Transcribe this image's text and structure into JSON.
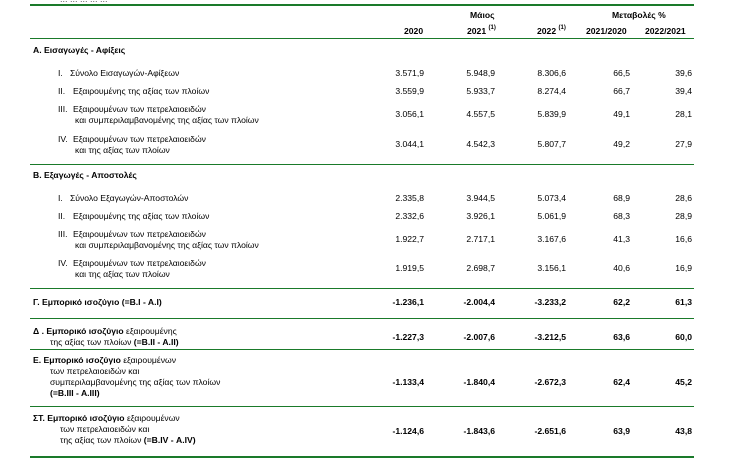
{
  "top_cut_text": "... ... ... ... ...",
  "header": {
    "month": "Μάιος",
    "changes": "Μεταβολές %",
    "col_2020": "2020",
    "col_2021": "2021",
    "col_2022": "2022",
    "note_mark": "(1)",
    "col_2021_2020": "2021/2020",
    "col_2022_2021": "2022/2021"
  },
  "section_a": {
    "title": "Α. Εισαγωγές - Αφίξεις",
    "rows": [
      {
        "idx": "I.",
        "lines": [
          "Σύνολο Εισαγωγών-Αφίξεων"
        ],
        "v2020": "3.571,9",
        "v2021": "5.948,9",
        "v2022": "8.306,6",
        "c1": "66,5",
        "c2": "39,6"
      },
      {
        "idx": "II.",
        "lines": [
          "Εξαιρουμένης της αξίας των πλοίων"
        ],
        "v2020": "3.559,9",
        "v2021": "5.933,7",
        "v2022": "8.274,4",
        "c1": "66,7",
        "c2": "39,4"
      },
      {
        "idx": "III.",
        "lines": [
          "Εξαιρουμένων των πετρελαιοειδών",
          "και συμπεριλαμβανομένης της αξίας των πλοίων"
        ],
        "v2020": "3.056,1",
        "v2021": "4.557,5",
        "v2022": "5.839,9",
        "c1": "49,1",
        "c2": "28,1"
      },
      {
        "idx": "IV.",
        "lines": [
          "Εξαιρουμένων των πετρελαιοειδών",
          "και  της αξίας των πλοίων"
        ],
        "v2020": "3.044,1",
        "v2021": "4.542,3",
        "v2022": "5.807,7",
        "c1": "49,2",
        "c2": "27,9"
      }
    ]
  },
  "section_b": {
    "title": "Β. Εξαγωγές - Αποστολές",
    "rows": [
      {
        "idx": "I.",
        "lines": [
          "Σύνολο Εξαγωγών-Αποστολών"
        ],
        "v2020": "2.335,8",
        "v2021": "3.944,5",
        "v2022": "5.073,4",
        "c1": "68,9",
        "c2": "28,6"
      },
      {
        "idx": "II.",
        "lines": [
          "Εξαιρουμένης της αξίας των πλοίων"
        ],
        "v2020": "2.332,6",
        "v2021": "3.926,1",
        "v2022": "5.061,9",
        "c1": "68,3",
        "c2": "28,9"
      },
      {
        "idx": "III.",
        "lines": [
          "Εξαιρουμένων των πετρελαιοειδών",
          "και συμπεριλαμβανομένης της αξίας των πλοίων"
        ],
        "v2020": "1.922,7",
        "v2021": "2.717,1",
        "v2022": "3.167,6",
        "c1": "41,3",
        "c2": "16,6"
      },
      {
        "idx": "IV.",
        "lines": [
          "Εξαιρουμένων των πετρελαιοειδών",
          "και της αξίας των πλοίων"
        ],
        "v2020": "1.919,5",
        "v2021": "2.698,7",
        "v2022": "3.156,1",
        "c1": "40,6",
        "c2": "16,9"
      }
    ]
  },
  "balances": [
    {
      "lines": [
        {
          "bold": "Γ. Εμπορικό ισοζύγιο ",
          "rest": "",
          "tail": "(=Β.Ι - Α.Ι)"
        }
      ],
      "v2020": "-1.236,1",
      "v2021": "-2.004,4",
      "v2022": "-3.233,2",
      "c1": "62,2",
      "c2": "61,3"
    },
    {
      "lines": [
        {
          "bold": "Δ . Εμπορικό ισοζύγιο ",
          "rest": "εξαιρουμένης",
          "tail": ""
        },
        {
          "bold": "",
          "rest": "της αξίας των πλοίων ",
          "tail": "(=Β.ΙΙ - Α.ΙΙ)"
        }
      ],
      "v2020": "-1.227,3",
      "v2021": "-2.007,6",
      "v2022": "-3.212,5",
      "c1": "63,6",
      "c2": "60,0"
    },
    {
      "lines": [
        {
          "bold": "Ε. Εμπορικό ισοζύγιο ",
          "rest": "εξαιρουμένων",
          "tail": ""
        },
        {
          "bold": "",
          "rest": "των πετρελαιοειδών και",
          "tail": ""
        },
        {
          "bold": "",
          "rest": "συμπεριλαμβανομένης της αξίας των πλοίων",
          "tail": ""
        },
        {
          "bold": "",
          "rest": "",
          "tail": "(=Β.ΙΙΙ - Α.ΙΙΙ)"
        }
      ],
      "v2020": "-1.133,4",
      "v2021": "-1.840,4",
      "v2022": "-2.672,3",
      "c1": "62,4",
      "c2": "45,2"
    },
    {
      "lines": [
        {
          "bold": "ΣΤ. Εμπορικό ισοζύγιο ",
          "rest": "εξαιρουμένων",
          "tail": ""
        },
        {
          "bold": "",
          "rest": "των πετρελαιοειδών και",
          "tail": ""
        },
        {
          "bold": "",
          "rest": "της αξίας των πλοίων ",
          "tail": "(=Β.ΙV - Α.ΙV)"
        }
      ],
      "v2020": "-1.124,6",
      "v2021": "-1.843,6",
      "v2022": "-2.651,6",
      "c1": "63,9",
      "c2": "43,8"
    }
  ]
}
